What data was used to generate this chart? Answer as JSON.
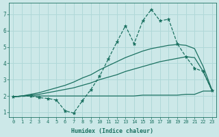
{
  "xlabel": "Humidex (Indice chaleur)",
  "bg_color": "#cce8e8",
  "grid_color": "#b0d8d8",
  "line_color": "#1a7060",
  "xlim": [
    -0.5,
    23.5
  ],
  "ylim": [
    0.7,
    7.7
  ],
  "xticks": [
    0,
    1,
    2,
    3,
    4,
    5,
    6,
    7,
    8,
    9,
    10,
    11,
    12,
    13,
    14,
    15,
    16,
    17,
    18,
    19,
    20,
    21,
    22,
    23
  ],
  "yticks": [
    1,
    2,
    3,
    4,
    5,
    6,
    7
  ],
  "series": [
    {
      "x": [
        0,
        1,
        2,
        3,
        4,
        5,
        6,
        7,
        8,
        9,
        10,
        11,
        12,
        13,
        14,
        15,
        16,
        17,
        18,
        19,
        20,
        21,
        22,
        23
      ],
      "y": [
        1.95,
        2.0,
        2.0,
        2.0,
        2.0,
        2.0,
        2.0,
        2.0,
        2.0,
        2.0,
        2.0,
        2.0,
        2.0,
        2.0,
        2.0,
        2.05,
        2.05,
        2.05,
        2.05,
        2.05,
        2.1,
        2.1,
        2.3,
        2.3
      ],
      "ls": "-",
      "lw": 0.9,
      "marker": null
    },
    {
      "x": [
        0,
        1,
        2,
        3,
        4,
        5,
        6,
        7,
        8,
        9,
        10,
        11,
        12,
        13,
        14,
        15,
        16,
        17,
        18,
        19,
        20,
        21,
        22,
        23
      ],
      "y": [
        1.95,
        2.0,
        2.05,
        2.1,
        2.2,
        2.3,
        2.4,
        2.5,
        2.65,
        2.8,
        3.0,
        3.15,
        3.3,
        3.5,
        3.65,
        3.8,
        3.95,
        4.1,
        4.2,
        4.3,
        4.4,
        4.35,
        3.5,
        2.35
      ],
      "ls": "-",
      "lw": 0.9,
      "marker": null
    },
    {
      "x": [
        0,
        1,
        2,
        3,
        4,
        5,
        6,
        7,
        8,
        9,
        10,
        11,
        12,
        13,
        14,
        15,
        16,
        17,
        18,
        19,
        20,
        21,
        22,
        23
      ],
      "y": [
        1.95,
        2.0,
        2.1,
        2.2,
        2.35,
        2.5,
        2.65,
        2.85,
        3.1,
        3.3,
        3.6,
        3.85,
        4.1,
        4.35,
        4.55,
        4.75,
        4.9,
        5.0,
        5.1,
        5.15,
        5.1,
        4.9,
        3.8,
        2.4
      ],
      "ls": "-",
      "lw": 0.9,
      "marker": null
    },
    {
      "x": [
        0,
        2,
        3,
        4,
        5,
        6,
        7,
        8,
        9,
        10,
        11,
        12,
        13,
        14,
        15,
        16,
        17,
        18,
        19,
        20,
        21,
        22,
        23
      ],
      "y": [
        1.95,
        2.0,
        1.9,
        1.85,
        1.75,
        1.1,
        0.95,
        1.7,
        2.4,
        3.2,
        4.25,
        5.3,
        6.3,
        5.2,
        6.6,
        7.3,
        6.6,
        6.7,
        5.2,
        4.4,
        3.7,
        3.5,
        2.35
      ],
      "ls": "--",
      "lw": 0.9,
      "marker": "*"
    }
  ]
}
